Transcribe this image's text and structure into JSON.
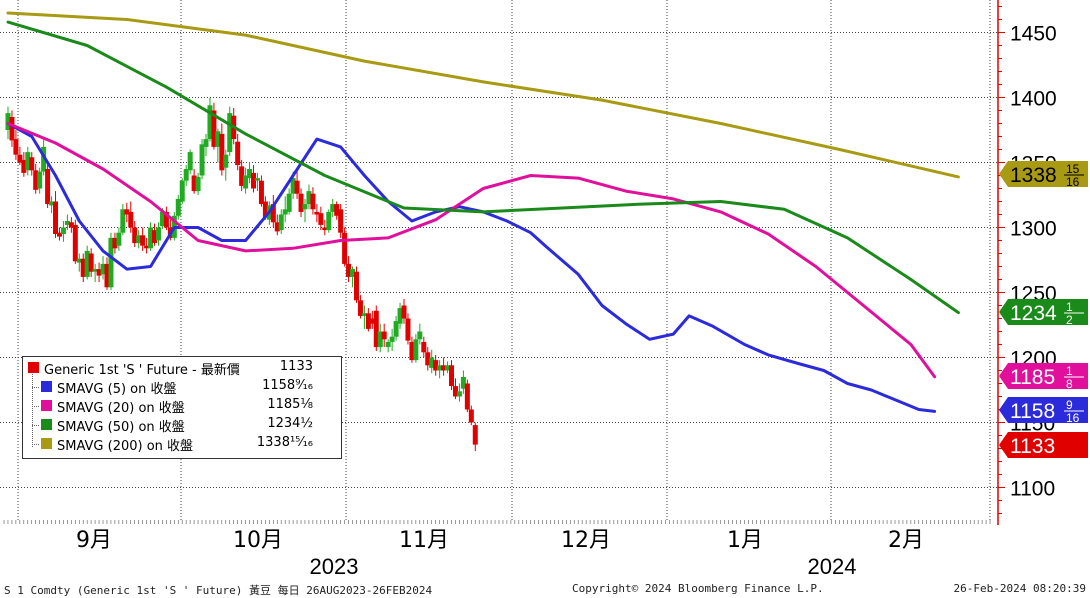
{
  "chart_data": {
    "type": "candlestick",
    "title": "",
    "y_axis": {
      "min": 1075,
      "max": 1475,
      "ticks": [
        1100,
        1150,
        1200,
        1250,
        1300,
        1350,
        1400,
        1450
      ],
      "side": "right"
    },
    "x_axis": {
      "months": [
        "9月",
        "10月",
        "11月",
        "12月",
        "1月",
        "2月"
      ],
      "years": [
        "2023",
        "2024"
      ]
    },
    "candles": [
      {
        "o": 1375,
        "h": 1393,
        "l": 1368,
        "c": 1388
      },
      {
        "o": 1385,
        "h": 1390,
        "l": 1362,
        "c": 1367
      },
      {
        "o": 1368,
        "h": 1375,
        "l": 1352,
        "c": 1356
      },
      {
        "o": 1356,
        "h": 1362,
        "l": 1348,
        "c": 1350
      },
      {
        "o": 1352,
        "h": 1358,
        "l": 1339,
        "c": 1342
      },
      {
        "o": 1344,
        "h": 1362,
        "l": 1340,
        "c": 1358
      },
      {
        "o": 1354,
        "h": 1358,
        "l": 1340,
        "c": 1344
      },
      {
        "o": 1344,
        "h": 1349,
        "l": 1326,
        "c": 1329
      },
      {
        "o": 1330,
        "h": 1346,
        "l": 1326,
        "c": 1343
      },
      {
        "o": 1343,
        "h": 1368,
        "l": 1340,
        "c": 1362
      },
      {
        "o": 1345,
        "h": 1350,
        "l": 1315,
        "c": 1318
      },
      {
        "o": 1317,
        "h": 1324,
        "l": 1311,
        "c": 1320
      },
      {
        "o": 1320,
        "h": 1328,
        "l": 1292,
        "c": 1295
      },
      {
        "o": 1296,
        "h": 1300,
        "l": 1290,
        "c": 1293
      },
      {
        "o": 1295,
        "h": 1305,
        "l": 1289,
        "c": 1300
      },
      {
        "o": 1302,
        "h": 1310,
        "l": 1298,
        "c": 1305
      },
      {
        "o": 1304,
        "h": 1308,
        "l": 1296,
        "c": 1300
      },
      {
        "o": 1302,
        "h": 1306,
        "l": 1272,
        "c": 1274
      },
      {
        "o": 1273,
        "h": 1280,
        "l": 1266,
        "c": 1276
      },
      {
        "o": 1276,
        "h": 1280,
        "l": 1258,
        "c": 1262
      },
      {
        "o": 1262,
        "h": 1286,
        "l": 1260,
        "c": 1282
      },
      {
        "o": 1280,
        "h": 1284,
        "l": 1262,
        "c": 1266
      },
      {
        "o": 1266,
        "h": 1272,
        "l": 1258,
        "c": 1268
      },
      {
        "o": 1268,
        "h": 1273,
        "l": 1258,
        "c": 1263
      },
      {
        "o": 1264,
        "h": 1278,
        "l": 1260,
        "c": 1272
      },
      {
        "o": 1272,
        "h": 1277,
        "l": 1252,
        "c": 1254
      },
      {
        "o": 1254,
        "h": 1296,
        "l": 1252,
        "c": 1292
      },
      {
        "o": 1292,
        "h": 1296,
        "l": 1280,
        "c": 1284
      },
      {
        "o": 1286,
        "h": 1300,
        "l": 1282,
        "c": 1296
      },
      {
        "o": 1296,
        "h": 1318,
        "l": 1294,
        "c": 1314
      },
      {
        "o": 1314,
        "h": 1319,
        "l": 1304,
        "c": 1310
      },
      {
        "o": 1312,
        "h": 1320,
        "l": 1296,
        "c": 1300
      },
      {
        "o": 1300,
        "h": 1305,
        "l": 1285,
        "c": 1288
      },
      {
        "o": 1288,
        "h": 1298,
        "l": 1284,
        "c": 1294
      },
      {
        "o": 1294,
        "h": 1300,
        "l": 1282,
        "c": 1286
      },
      {
        "o": 1286,
        "h": 1292,
        "l": 1280,
        "c": 1284
      },
      {
        "o": 1284,
        "h": 1304,
        "l": 1282,
        "c": 1300
      },
      {
        "o": 1298,
        "h": 1303,
        "l": 1286,
        "c": 1288
      },
      {
        "o": 1290,
        "h": 1304,
        "l": 1286,
        "c": 1300
      },
      {
        "o": 1301,
        "h": 1315,
        "l": 1299,
        "c": 1312
      },
      {
        "o": 1312,
        "h": 1316,
        "l": 1298,
        "c": 1300
      },
      {
        "o": 1300,
        "h": 1306,
        "l": 1290,
        "c": 1292
      },
      {
        "o": 1292,
        "h": 1312,
        "l": 1290,
        "c": 1309
      },
      {
        "o": 1309,
        "h": 1325,
        "l": 1306,
        "c": 1322
      },
      {
        "o": 1320,
        "h": 1338,
        "l": 1318,
        "c": 1336
      },
      {
        "o": 1336,
        "h": 1348,
        "l": 1332,
        "c": 1345
      },
      {
        "o": 1344,
        "h": 1360,
        "l": 1341,
        "c": 1358
      },
      {
        "o": 1340,
        "h": 1345,
        "l": 1326,
        "c": 1328
      },
      {
        "o": 1328,
        "h": 1342,
        "l": 1325,
        "c": 1339
      },
      {
        "o": 1340,
        "h": 1368,
        "l": 1337,
        "c": 1364
      },
      {
        "o": 1362,
        "h": 1372,
        "l": 1355,
        "c": 1368
      },
      {
        "o": 1368,
        "h": 1400,
        "l": 1366,
        "c": 1394
      },
      {
        "o": 1390,
        "h": 1396,
        "l": 1360,
        "c": 1362
      },
      {
        "o": 1362,
        "h": 1376,
        "l": 1350,
        "c": 1374
      },
      {
        "o": 1372,
        "h": 1380,
        "l": 1340,
        "c": 1344
      },
      {
        "o": 1346,
        "h": 1360,
        "l": 1336,
        "c": 1356
      },
      {
        "o": 1358,
        "h": 1393,
        "l": 1355,
        "c": 1388
      },
      {
        "o": 1386,
        "h": 1392,
        "l": 1364,
        "c": 1368
      },
      {
        "o": 1366,
        "h": 1372,
        "l": 1344,
        "c": 1348
      },
      {
        "o": 1347,
        "h": 1352,
        "l": 1328,
        "c": 1332
      },
      {
        "o": 1330,
        "h": 1346,
        "l": 1326,
        "c": 1340
      },
      {
        "o": 1338,
        "h": 1350,
        "l": 1334,
        "c": 1345
      },
      {
        "o": 1342,
        "h": 1348,
        "l": 1327,
        "c": 1330
      },
      {
        "o": 1336,
        "h": 1342,
        "l": 1328,
        "c": 1338
      },
      {
        "o": 1336,
        "h": 1340,
        "l": 1316,
        "c": 1318
      },
      {
        "o": 1320,
        "h": 1324,
        "l": 1306,
        "c": 1308
      },
      {
        "o": 1306,
        "h": 1320,
        "l": 1302,
        "c": 1317
      },
      {
        "o": 1318,
        "h": 1325,
        "l": 1300,
        "c": 1304
      },
      {
        "o": 1304,
        "h": 1310,
        "l": 1294,
        "c": 1297
      },
      {
        "o": 1298,
        "h": 1314,
        "l": 1295,
        "c": 1310
      },
      {
        "o": 1310,
        "h": 1324,
        "l": 1304,
        "c": 1314
      },
      {
        "o": 1312,
        "h": 1330,
        "l": 1310,
        "c": 1326
      },
      {
        "o": 1326,
        "h": 1343,
        "l": 1322,
        "c": 1338
      },
      {
        "o": 1336,
        "h": 1345,
        "l": 1322,
        "c": 1326
      },
      {
        "o": 1326,
        "h": 1330,
        "l": 1308,
        "c": 1312
      },
      {
        "o": 1314,
        "h": 1322,
        "l": 1304,
        "c": 1318
      },
      {
        "o": 1318,
        "h": 1333,
        "l": 1314,
        "c": 1328
      },
      {
        "o": 1326,
        "h": 1331,
        "l": 1310,
        "c": 1314
      },
      {
        "o": 1312,
        "h": 1318,
        "l": 1304,
        "c": 1310
      },
      {
        "o": 1311,
        "h": 1316,
        "l": 1298,
        "c": 1302
      },
      {
        "o": 1300,
        "h": 1306,
        "l": 1294,
        "c": 1298
      },
      {
        "o": 1298,
        "h": 1314,
        "l": 1296,
        "c": 1312
      },
      {
        "o": 1312,
        "h": 1322,
        "l": 1308,
        "c": 1318
      },
      {
        "o": 1318,
        "h": 1320,
        "l": 1306,
        "c": 1309
      },
      {
        "o": 1314,
        "h": 1318,
        "l": 1292,
        "c": 1296
      },
      {
        "o": 1296,
        "h": 1300,
        "l": 1270,
        "c": 1272
      },
      {
        "o": 1272,
        "h": 1278,
        "l": 1258,
        "c": 1262
      },
      {
        "o": 1262,
        "h": 1270,
        "l": 1254,
        "c": 1268
      },
      {
        "o": 1266,
        "h": 1270,
        "l": 1242,
        "c": 1244
      },
      {
        "o": 1244,
        "h": 1248,
        "l": 1230,
        "c": 1232
      },
      {
        "o": 1232,
        "h": 1240,
        "l": 1222,
        "c": 1234
      },
      {
        "o": 1234,
        "h": 1238,
        "l": 1220,
        "c": 1222
      },
      {
        "o": 1230,
        "h": 1236,
        "l": 1222,
        "c": 1226
      },
      {
        "o": 1236,
        "h": 1240,
        "l": 1205,
        "c": 1208
      },
      {
        "o": 1208,
        "h": 1226,
        "l": 1204,
        "c": 1220
      },
      {
        "o": 1220,
        "h": 1226,
        "l": 1208,
        "c": 1214
      },
      {
        "o": 1208,
        "h": 1214,
        "l": 1204,
        "c": 1212
      },
      {
        "o": 1212,
        "h": 1222,
        "l": 1205,
        "c": 1216
      },
      {
        "o": 1216,
        "h": 1232,
        "l": 1213,
        "c": 1228
      },
      {
        "o": 1226,
        "h": 1242,
        "l": 1222,
        "c": 1238
      },
      {
        "o": 1240,
        "h": 1245,
        "l": 1226,
        "c": 1230
      },
      {
        "o": 1230,
        "h": 1234,
        "l": 1210,
        "c": 1213
      },
      {
        "o": 1212,
        "h": 1216,
        "l": 1196,
        "c": 1198
      },
      {
        "o": 1198,
        "h": 1218,
        "l": 1196,
        "c": 1214
      },
      {
        "o": 1214,
        "h": 1226,
        "l": 1210,
        "c": 1220
      },
      {
        "o": 1212,
        "h": 1216,
        "l": 1200,
        "c": 1204
      },
      {
        "o": 1204,
        "h": 1208,
        "l": 1190,
        "c": 1194
      },
      {
        "o": 1192,
        "h": 1206,
        "l": 1188,
        "c": 1200
      },
      {
        "o": 1198,
        "h": 1202,
        "l": 1186,
        "c": 1190
      },
      {
        "o": 1190,
        "h": 1198,
        "l": 1184,
        "c": 1194
      },
      {
        "o": 1194,
        "h": 1200,
        "l": 1186,
        "c": 1190
      },
      {
        "o": 1190,
        "h": 1197,
        "l": 1188,
        "c": 1194
      },
      {
        "o": 1194,
        "h": 1198,
        "l": 1175,
        "c": 1178
      },
      {
        "o": 1178,
        "h": 1184,
        "l": 1168,
        "c": 1170
      },
      {
        "o": 1170,
        "h": 1180,
        "l": 1166,
        "c": 1174
      },
      {
        "o": 1176,
        "h": 1190,
        "l": 1172,
        "c": 1185
      },
      {
        "o": 1180,
        "h": 1183,
        "l": 1158,
        "c": 1160
      },
      {
        "o": 1160,
        "h": 1163,
        "l": 1148,
        "c": 1150
      },
      {
        "o": 1148,
        "h": 1150,
        "l": 1128,
        "c": 1133
      }
    ],
    "series": [
      {
        "name": "Generic 1st 'S ' Future - 最新價",
        "color": "#e00000",
        "last": "1133"
      },
      {
        "name": "SMAVG (5)  on 收盤",
        "color": "#2b2bdc",
        "last": "1158 9/16",
        "values": [
          [
            0,
            1380
          ],
          [
            6,
            1370
          ],
          [
            12,
            1340
          ],
          [
            18,
            1305
          ],
          [
            24,
            1282
          ],
          [
            30,
            1268
          ],
          [
            36,
            1270
          ],
          [
            42,
            1300
          ],
          [
            48,
            1300
          ],
          [
            54,
            1290
          ],
          [
            60,
            1290
          ],
          [
            66,
            1312
          ],
          [
            72,
            1340
          ],
          [
            78,
            1368
          ],
          [
            84,
            1362
          ],
          [
            90,
            1340
          ],
          [
            96,
            1320
          ],
          [
            102,
            1305
          ],
          [
            108,
            1312
          ],
          [
            114,
            1316
          ],
          [
            120,
            1312
          ],
          [
            126,
            1305
          ],
          [
            132,
            1296
          ],
          [
            136,
            1285
          ],
          [
            144,
            1264
          ],
          [
            150,
            1240
          ],
          [
            156,
            1226
          ],
          [
            162,
            1214
          ],
          [
            168,
            1218
          ],
          [
            172,
            1232
          ],
          [
            178,
            1224
          ],
          [
            186,
            1210
          ],
          [
            192,
            1202
          ],
          [
            200,
            1195
          ],
          [
            206,
            1190
          ],
          [
            212,
            1180
          ],
          [
            218,
            1175
          ],
          [
            222,
            1170
          ],
          [
            226,
            1165
          ],
          [
            230,
            1160
          ],
          [
            234,
            1158.56
          ]
        ]
      },
      {
        "name": "SMAVG (20)  on 收盤",
        "color": "#e0109c",
        "last": "1185 1/8",
        "values": [
          [
            0,
            1380
          ],
          [
            12,
            1365
          ],
          [
            24,
            1345
          ],
          [
            36,
            1320
          ],
          [
            48,
            1290
          ],
          [
            60,
            1282
          ],
          [
            72,
            1284
          ],
          [
            84,
            1290
          ],
          [
            96,
            1292
          ],
          [
            108,
            1306
          ],
          [
            120,
            1330
          ],
          [
            132,
            1340
          ],
          [
            144,
            1338
          ],
          [
            156,
            1328
          ],
          [
            168,
            1322
          ],
          [
            180,
            1312
          ],
          [
            192,
            1295
          ],
          [
            204,
            1270
          ],
          [
            216,
            1240
          ],
          [
            228,
            1210
          ],
          [
            234,
            1185.125
          ]
        ]
      },
      {
        "name": "SMAVG (50)  on 收盤",
        "color": "#1a8a1a",
        "last": "1234 1/2",
        "values": [
          [
            0,
            1458
          ],
          [
            20,
            1440
          ],
          [
            40,
            1408
          ],
          [
            60,
            1372
          ],
          [
            80,
            1340
          ],
          [
            100,
            1315
          ],
          [
            120,
            1312
          ],
          [
            140,
            1315
          ],
          [
            160,
            1318
          ],
          [
            180,
            1320
          ],
          [
            196,
            1314
          ],
          [
            212,
            1292
          ],
          [
            228,
            1260
          ],
          [
            240,
            1234.5
          ]
        ]
      },
      {
        "name": "SMAVG (200)  on 收盤",
        "color": "#a89a12",
        "last": "1338 15/16",
        "values": [
          [
            0,
            1465
          ],
          [
            30,
            1460
          ],
          [
            60,
            1448
          ],
          [
            90,
            1428
          ],
          [
            120,
            1412
          ],
          [
            150,
            1398
          ],
          [
            180,
            1380
          ],
          [
            210,
            1360
          ],
          [
            240,
            1338.94
          ]
        ]
      }
    ],
    "last_labels": [
      {
        "text": "1338",
        "num": "15",
        "den": "16",
        "value": 1338.94,
        "bg": "#a89a12",
        "fg": "#000000"
      },
      {
        "text": "1234",
        "num": "1",
        "den": "2",
        "value": 1234.5,
        "bg": "#1a8a1a",
        "fg": "#ffffff"
      },
      {
        "text": "1185",
        "num": "1",
        "den": "8",
        "value": 1185.125,
        "bg": "#e0109c",
        "fg": "#ffffff"
      },
      {
        "text": "1158",
        "num": "9",
        "den": "16",
        "value": 1158.56,
        "bg": "#2b2bdc",
        "fg": "#ffffff"
      },
      {
        "text": "1133",
        "num": "",
        "den": "",
        "value": 1133,
        "bg": "#e00000",
        "fg": "#ffffff"
      }
    ],
    "grid": true,
    "legend_position": "bottom-left"
  },
  "legend": {
    "rows": [
      {
        "label": "Generic 1st 'S ' Future - 最新價",
        "value": "1133",
        "color": "#e00000"
      },
      {
        "label": "SMAVG (5)  on 收盤",
        "value": "1158⁹⁄₁₆",
        "color": "#2b2bdc"
      },
      {
        "label": "SMAVG (20)  on 收盤",
        "value": "1185⅛",
        "color": "#e0109c"
      },
      {
        "label": "SMAVG (50)  on 收盤",
        "value": "1234½",
        "color": "#1a8a1a"
      },
      {
        "label": "SMAVG (200)  on 收盤",
        "value": "1338¹⁵⁄₁₆",
        "color": "#a89a12"
      }
    ]
  },
  "footer": {
    "left": "S 1 Comdty (Generic 1st 'S ' Future) 黃豆  每日 26AUG2023-26FEB2024",
    "center": "Copyright© 2024 Bloomberg Finance L.P.",
    "right": "26-Feb-2024 08:20:39"
  },
  "colors": {
    "up": "#22aa22",
    "down": "#e00000",
    "grid": "#444444",
    "axis": "#e00000"
  }
}
